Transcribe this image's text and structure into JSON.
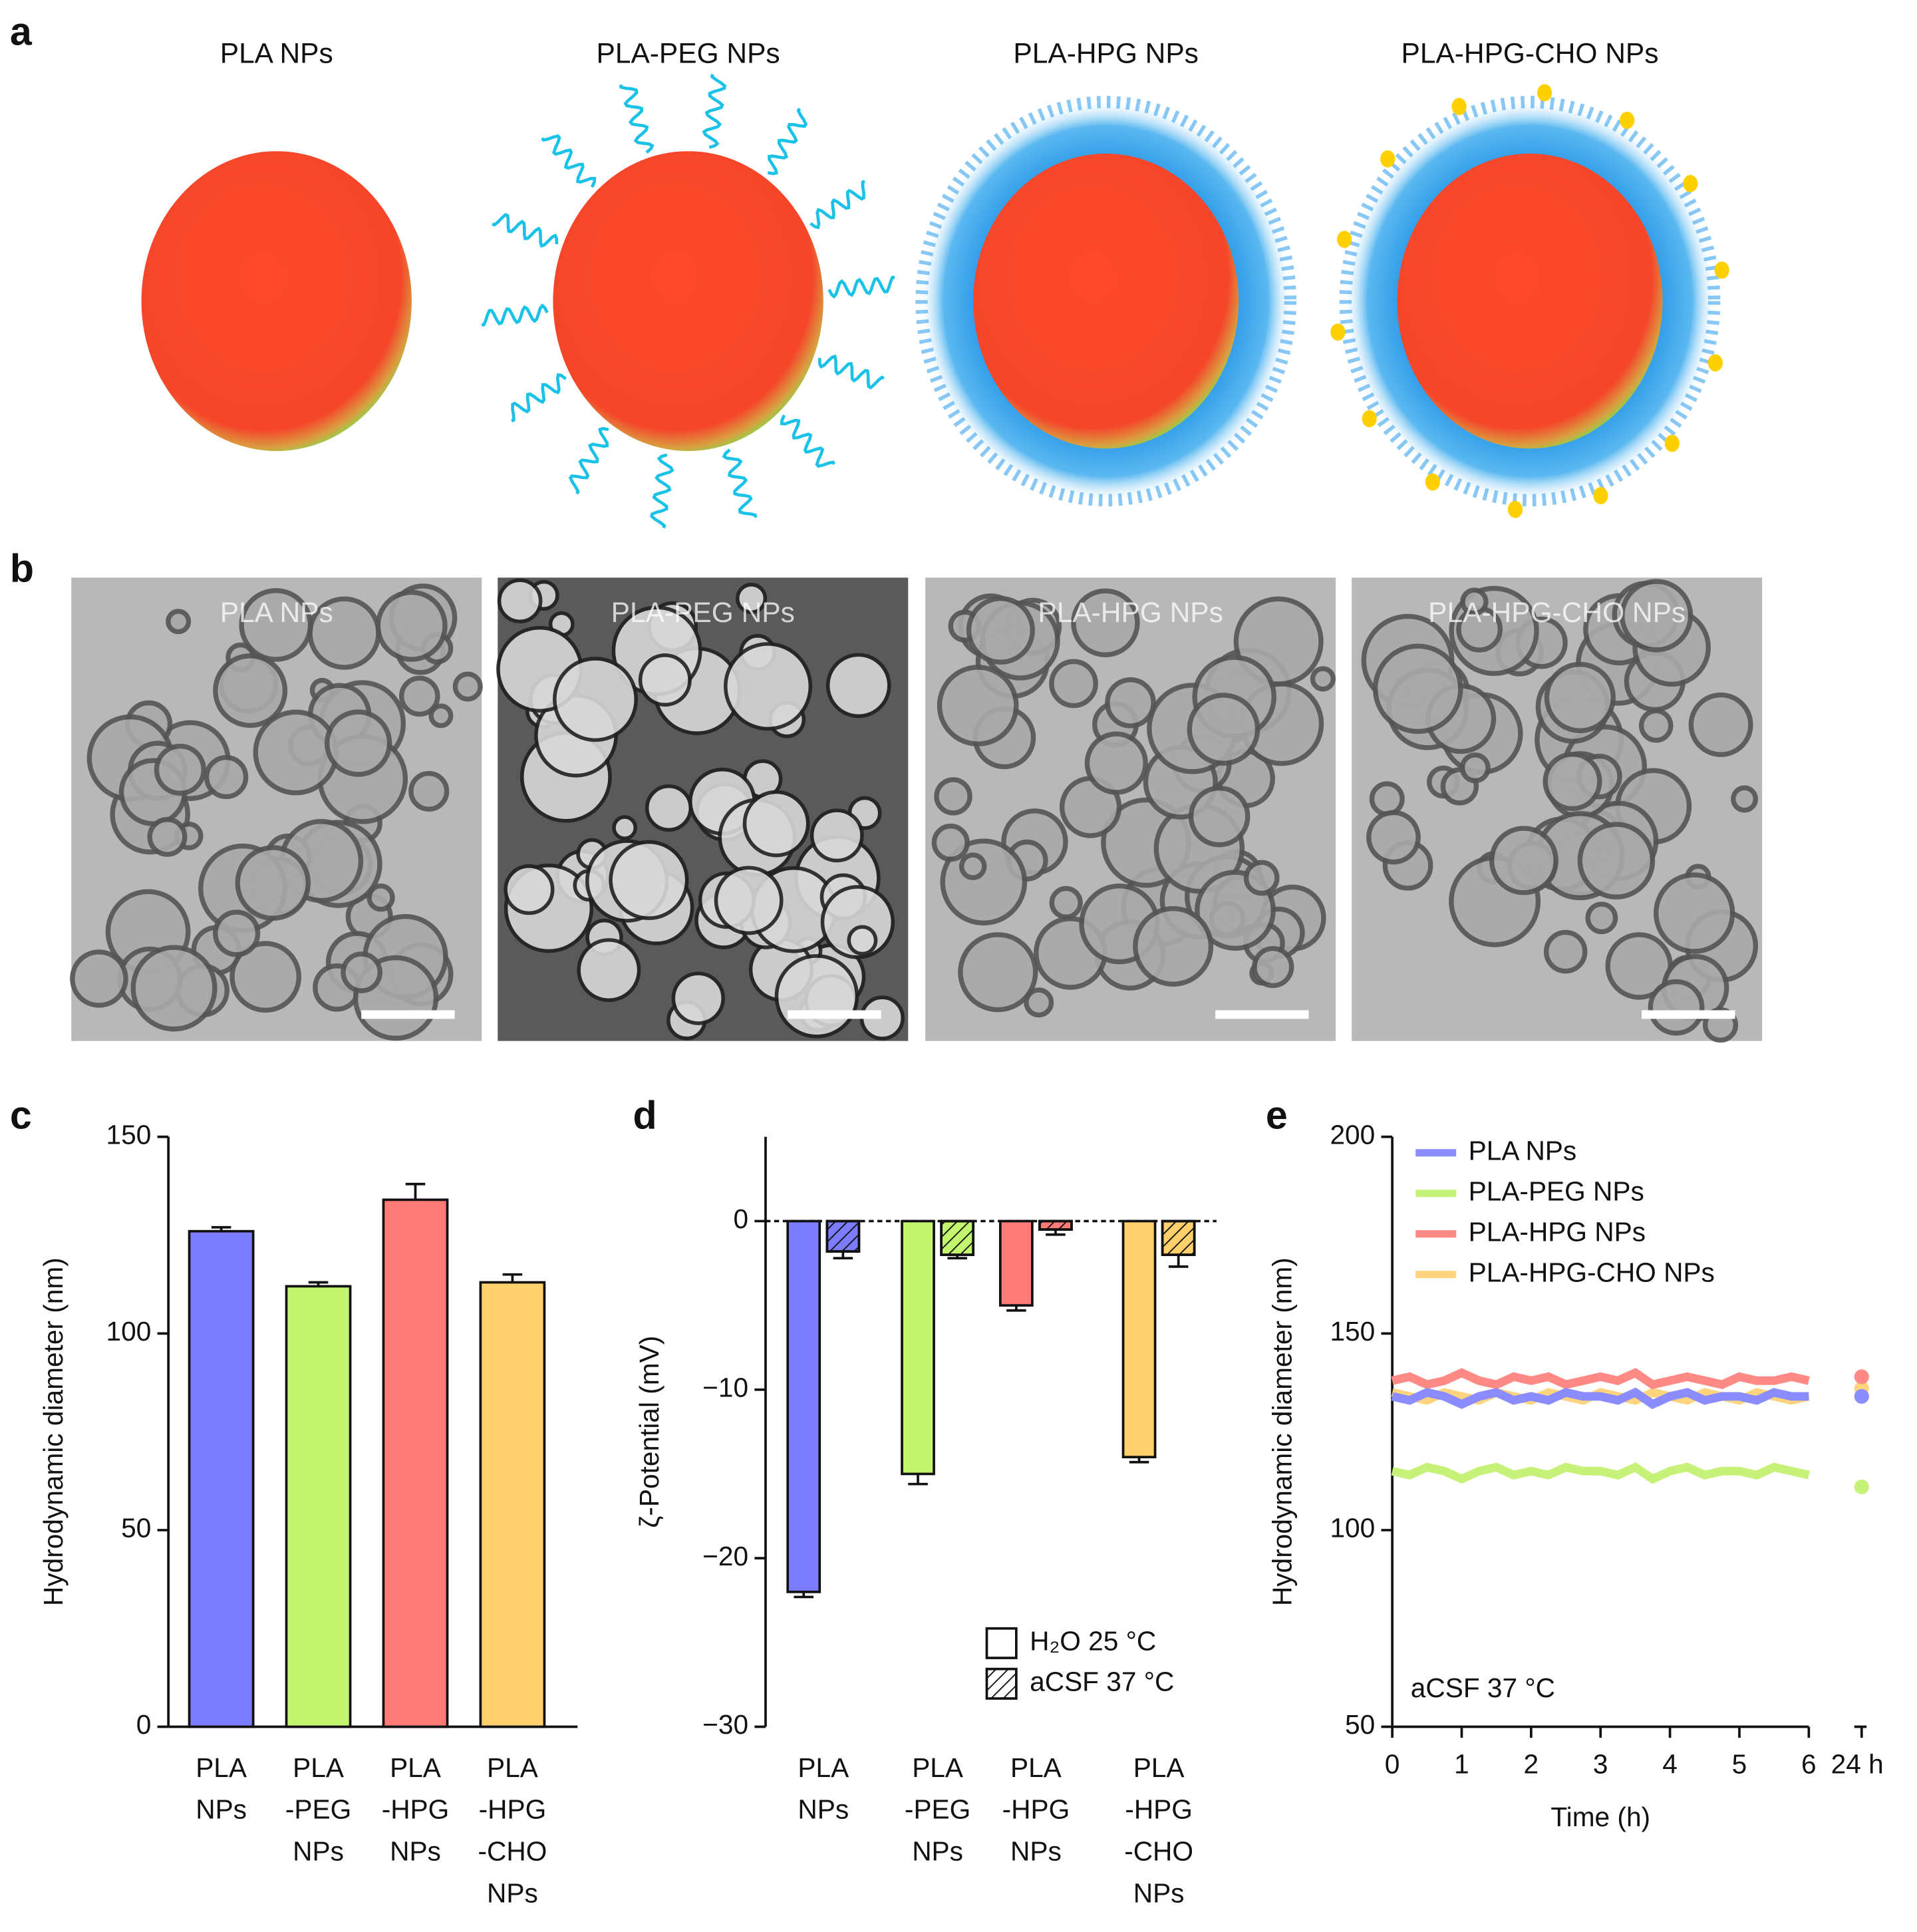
{
  "panel_labels": [
    "a",
    "b",
    "c",
    "d",
    "e"
  ],
  "schematic": {
    "labels": [
      "PLA NPs",
      "PLA-PEG NPs",
      "PLA-HPG NPs",
      "PLA-HPG-CHO NPs"
    ]
  },
  "micrographs": {
    "labels": [
      "PLA NPs",
      "PLA-PEG NPs",
      "PLA-HPG NPs",
      "PLA-HPG-CHO NPs"
    ]
  },
  "chart_data": [
    {
      "type": "bar",
      "y_label": "Hydrodynamic diameter (nm)",
      "categories": [
        [
          "PLA",
          "NPs"
        ],
        [
          "PLA",
          "-PEG",
          "NPs"
        ],
        [
          "PLA",
          "-HPG",
          "NPs"
        ],
        [
          "PLA",
          "-HPG",
          "-CHO",
          "NPs"
        ]
      ],
      "values": [
        126,
        112,
        134,
        113
      ],
      "errors": [
        1,
        1,
        4,
        2
      ],
      "colors": [
        "#7b7cff",
        "#c4f56e",
        "#ff7b78",
        "#ffd06b"
      ],
      "ylim": [
        0,
        150
      ],
      "yticks": [
        0,
        50,
        100,
        150
      ]
    },
    {
      "type": "grouped_bar",
      "y_label": "ζ-Potential (mV)",
      "categories": [
        [
          "PLA",
          "NPs"
        ],
        [
          "PLA",
          "-PEG",
          "NPs"
        ],
        [
          "PLA",
          "-HPG",
          "NPs"
        ],
        [
          "PLA",
          "-HPG",
          "-CHO",
          "NPs"
        ]
      ],
      "category_colors": [
        "#7b7cff",
        "#c4f56e",
        "#ff7b78",
        "#ffd06b"
      ],
      "series": [
        {
          "name": "H₂O 25 °C",
          "hatch": false,
          "values": [
            -22,
            -15,
            -5,
            -14
          ],
          "errors": [
            0.3,
            0.6,
            0.3,
            0.3
          ]
        },
        {
          "name": "aCSF 37 °C",
          "hatch": true,
          "values": [
            -1.8,
            -2,
            -0.5,
            -2
          ],
          "errors": [
            0.4,
            0.2,
            0.3,
            0.7
          ]
        }
      ],
      "ylim": [
        -30,
        5
      ],
      "yticks": [
        {
          "value": -30,
          "label": "−30"
        },
        {
          "value": -20,
          "label": "−20"
        },
        {
          "value": -10,
          "label": "−10"
        },
        0
      ],
      "zero_line": "dashed"
    },
    {
      "type": "line",
      "y_label": "Hydrodynamic diameter (nm)",
      "x_label": "Time (h)",
      "annotation": "aCSF 37 °C",
      "x": [
        0,
        0.25,
        0.5,
        0.75,
        1,
        1.25,
        1.5,
        1.75,
        2,
        2.25,
        2.5,
        2.75,
        3,
        3.25,
        3.5,
        3.75,
        4,
        4.25,
        4.5,
        4.75,
        5,
        5.25,
        5.5,
        5.75,
        6
      ],
      "late_x": 24,
      "series": [
        {
          "name": "PLA NPs",
          "color": "#8a8cff",
          "values": [
            134,
            133,
            135,
            134,
            132,
            134,
            135,
            133,
            134,
            133,
            135,
            134,
            134,
            133,
            135,
            132,
            134,
            135,
            133,
            134,
            134,
            133,
            135,
            134,
            134
          ],
          "late_value": 134
        },
        {
          "name": "PLA-PEG NPs",
          "color": "#c6f27a",
          "values": [
            115,
            114,
            116,
            115,
            113,
            115,
            116,
            114,
            115,
            114,
            116,
            115,
            115,
            114,
            116,
            113,
            115,
            116,
            114,
            115,
            115,
            114,
            116,
            115,
            114
          ],
          "late_value": 111
        },
        {
          "name": "PLA-HPG NPs",
          "color": "#ff8a85",
          "values": [
            138,
            139,
            137,
            138,
            140,
            138,
            137,
            139,
            138,
            139,
            137,
            138,
            139,
            138,
            140,
            137,
            138,
            139,
            138,
            137,
            139,
            138,
            138,
            139,
            138
          ],
          "late_value": 139
        },
        {
          "name": "PLA-HPG-CHO NPs",
          "color": "#ffd47f",
          "values": [
            135,
            134,
            133,
            135,
            134,
            133,
            135,
            134,
            133,
            135,
            134,
            133,
            135,
            134,
            133,
            135,
            134,
            133,
            135,
            134,
            133,
            135,
            134,
            133,
            134
          ],
          "late_value": 136
        }
      ],
      "xlim": [
        0,
        6
      ],
      "xticks": [
        0,
        1,
        2,
        3,
        4,
        5,
        6,
        {
          "value": 24,
          "label": "24 h"
        }
      ],
      "ylim": [
        50,
        200
      ],
      "yticks": [
        50,
        100,
        150,
        200
      ],
      "legend": "upper left"
    }
  ]
}
